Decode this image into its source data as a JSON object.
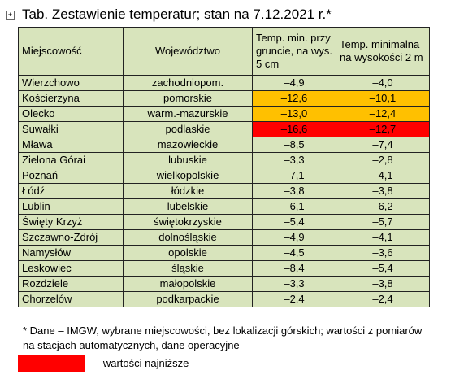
{
  "title": "Tab. Zestawienie temperatur; stan na 7.12.2021 r.*",
  "table": {
    "header": [
      "Miejscowość",
      "Województwo",
      "Temp. min. przy gruncie, na wys. 5 cm",
      "Temp. minimalna na wysokości 2 m"
    ],
    "color": "#d8e4bc",
    "rows": [
      {
        "cells": [
          "Wierzchowo",
          "zachodniopom.",
          "–4,9",
          "–4,0"
        ]
      },
      {
        "cells": [
          "Kościerzyna",
          "pomorskie",
          "–12,6",
          "–10,1"
        ],
        "color": "#ffc000"
      },
      {
        "cells": [
          "Olecko",
          "warm.-mazurskie",
          "–13,0",
          "–12,4"
        ],
        "color": "#ffc000"
      },
      {
        "cells": [
          "Suwałki",
          "podlaskie",
          "–16,6",
          "–12,7"
        ],
        "color": "#ff0000"
      },
      {
        "cells": [
          "Mława",
          "mazowieckie",
          "–8,5",
          "–7,4"
        ]
      },
      {
        "cells": [
          "Zielona Górai",
          "lubuskie",
          "–3,3",
          "–2,8"
        ]
      },
      {
        "cells": [
          "Poznań",
          "wielkopolskie",
          "–7,1",
          "–4,1"
        ]
      },
      {
        "cells": [
          "Łódź",
          "łódzkie",
          "–3,8",
          "–3,8"
        ]
      },
      {
        "cells": [
          "Lublin",
          "lubelskie",
          "–6,1",
          "–6,2"
        ]
      },
      {
        "cells": [
          "Święty Krzyż",
          "świętokrzyskie",
          "–5,4",
          "–5,7"
        ]
      },
      {
        "cells": [
          "Szczawno-Zdrój",
          "dolnośląskie",
          "–4,9",
          "–4,1"
        ]
      },
      {
        "cells": [
          "Namysłów",
          "opolskie",
          "–4,5",
          "–3,6"
        ]
      },
      {
        "cells": [
          "Leskowiec",
          "śląskie",
          "–8,4",
          "–5,4"
        ]
      },
      {
        "cells": [
          "Rozdziele",
          "małopolskie",
          "–3,3",
          "–3,8"
        ]
      },
      {
        "cells": [
          "Chorzelów",
          "podkarpackie",
          "–2,4",
          "–2,4"
        ]
      }
    ]
  },
  "footnote": "* Dane – IMGW, wybrane miejscowości, bez lokalizacji górskich; wartości z pomiarów na stacjach automatycznych, dane operacyjne",
  "legend": {
    "color": "#ff0000",
    "label": "– wartości najniższe"
  }
}
